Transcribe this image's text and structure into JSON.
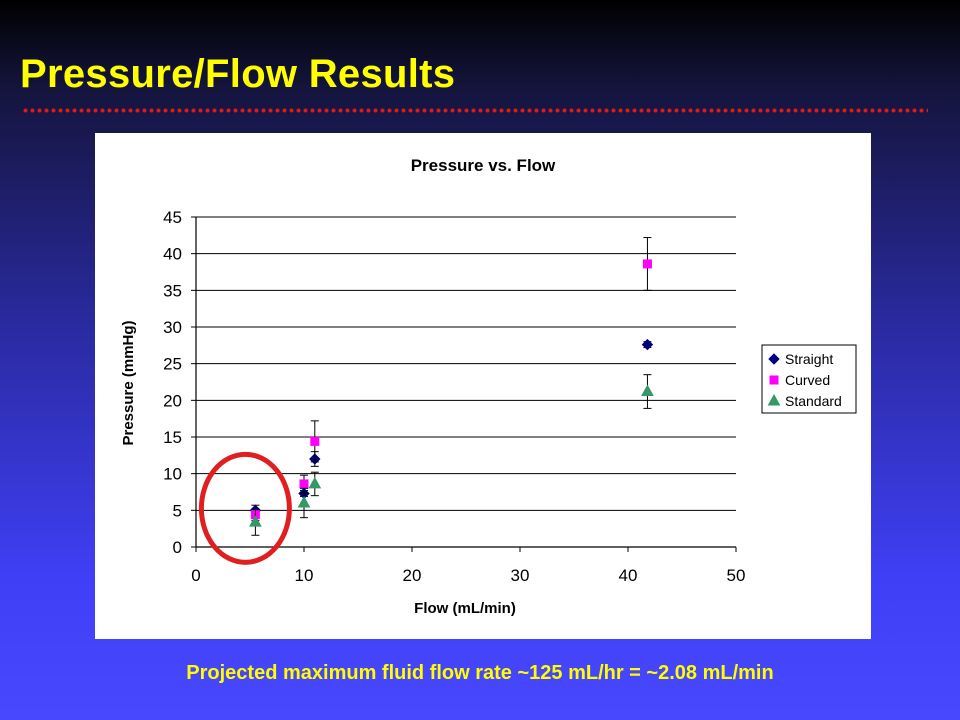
{
  "slide": {
    "title": "Pressure/Flow Results",
    "footer": "Projected maximum fluid flow rate ~125 mL/hr = ~2.08 mL/min"
  },
  "colors": {
    "title_text": "#ffff00",
    "rule_dots": "#e01818",
    "highlight_circle": "#e02020",
    "straight": "#000080",
    "curved": "#ff00ff",
    "standard": "#339966"
  },
  "chart_data": {
    "type": "scatter",
    "title": "Pressure vs. Flow",
    "xlabel": "Flow (mL/min)",
    "ylabel": "Pressure (mmHg)",
    "xlim": [
      0,
      50
    ],
    "ylim": [
      0,
      45
    ],
    "xticks": [
      0,
      10,
      20,
      30,
      40,
      50
    ],
    "yticks": [
      0,
      5,
      10,
      15,
      20,
      25,
      30,
      35,
      40,
      45
    ],
    "grid": "horizontal major gridlines",
    "legend_position": "right",
    "annotation": "circled points at lowest flow rate (~5.5 mL/min)",
    "series": [
      {
        "name": "Straight",
        "marker": "diamond",
        "color": "#000080",
        "points": [
          {
            "x": 5.5,
            "y": 5.0,
            "err": 0.7
          },
          {
            "x": 10.0,
            "y": 7.3,
            "err": 0.4
          },
          {
            "x": 11.0,
            "y": 12.0,
            "err": 1.0
          },
          {
            "x": 41.8,
            "y": 27.6,
            "err": 0.4
          }
        ]
      },
      {
        "name": "Curved",
        "marker": "square",
        "color": "#ff00ff",
        "points": [
          {
            "x": 5.5,
            "y": 4.4,
            "err": 0.8
          },
          {
            "x": 10.0,
            "y": 8.6,
            "err": 1.2
          },
          {
            "x": 11.0,
            "y": 14.4,
            "err": 2.8
          },
          {
            "x": 41.8,
            "y": 38.6,
            "err": 3.6
          }
        ]
      },
      {
        "name": "Standard",
        "marker": "triangle",
        "color": "#339966",
        "points": [
          {
            "x": 5.5,
            "y": 3.4,
            "err": 1.8
          },
          {
            "x": 10.0,
            "y": 6.0,
            "err": 2.0
          },
          {
            "x": 11.0,
            "y": 8.6,
            "err": 1.6
          },
          {
            "x": 41.8,
            "y": 21.2,
            "err": 2.3
          }
        ]
      }
    ]
  }
}
